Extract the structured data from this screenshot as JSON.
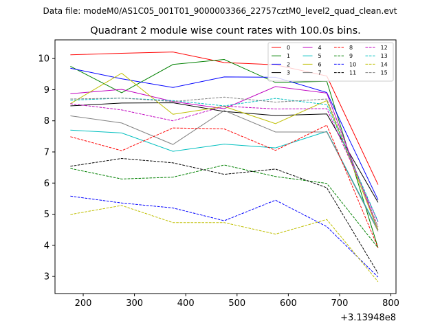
{
  "suptitle": "Data file: modeM0/AS1C05_001T01_9000003366_22757cztM0_level2_quad_clean.evt",
  "chart_data": {
    "type": "line",
    "title": "Quadrant 2 module wise count rates with 100.0s bins.",
    "xlabel": "",
    "ylabel": "",
    "x_offset_label": "+3.13948e8",
    "xlim": [
      145,
      810
    ],
    "ylim": [
      2.45,
      10.6
    ],
    "x_ticks": [
      200,
      300,
      400,
      500,
      600,
      700,
      800
    ],
    "y_ticks": [
      3,
      4,
      5,
      6,
      7,
      8,
      9,
      10
    ],
    "x": [
      175,
      275,
      375,
      475,
      575,
      675,
      775
    ],
    "legend_location": "upper right",
    "legend_columns": 4,
    "series": [
      {
        "name": "0",
        "color": "#ff0000",
        "dash": "solid",
        "values": [
          10.12,
          10.17,
          10.21,
          9.87,
          9.8,
          9.44,
          5.95
        ]
      },
      {
        "name": "1",
        "color": "#008000",
        "dash": "solid",
        "values": [
          9.75,
          8.9,
          9.81,
          9.97,
          9.23,
          9.27,
          3.92
        ]
      },
      {
        "name": "2",
        "color": "#0000ff",
        "dash": "solid",
        "values": [
          9.69,
          9.35,
          9.07,
          9.41,
          9.4,
          8.91,
          5.46
        ]
      },
      {
        "name": "3",
        "color": "#000000",
        "dash": "solid",
        "values": [
          8.48,
          8.57,
          8.58,
          8.3,
          8.17,
          8.22,
          5.38
        ]
      },
      {
        "name": "4",
        "color": "#bf00bf",
        "dash": "solid",
        "values": [
          8.87,
          9.01,
          8.62,
          8.39,
          9.1,
          8.89,
          4.5
        ]
      },
      {
        "name": "5",
        "color": "#00bfbf",
        "dash": "solid",
        "values": [
          7.7,
          7.61,
          7.02,
          7.25,
          7.13,
          7.66,
          4.5
        ]
      },
      {
        "name": "6",
        "color": "#bfbf00",
        "dash": "solid",
        "values": [
          8.55,
          9.53,
          8.21,
          8.46,
          7.91,
          8.65,
          4.48
        ]
      },
      {
        "name": "7",
        "color": "#808080",
        "dash": "solid",
        "values": [
          8.16,
          7.93,
          7.24,
          8.33,
          7.64,
          7.64,
          4.45
        ]
      },
      {
        "name": "8",
        "color": "#ff0000",
        "dash": "dashed",
        "values": [
          7.49,
          7.04,
          7.77,
          7.74,
          7.05,
          7.86,
          3.92
        ]
      },
      {
        "name": "9",
        "color": "#008000",
        "dash": "dashed",
        "values": [
          6.47,
          6.13,
          6.19,
          6.58,
          6.21,
          5.99,
          3.92
        ]
      },
      {
        "name": "10",
        "color": "#0000ff",
        "dash": "dashed",
        "values": [
          5.58,
          5.36,
          5.2,
          4.79,
          5.45,
          4.6,
          2.98
        ]
      },
      {
        "name": "11",
        "color": "#000000",
        "dash": "dashed",
        "values": [
          6.54,
          6.79,
          6.65,
          6.28,
          6.45,
          5.85,
          3.1
        ]
      },
      {
        "name": "12",
        "color": "#bf00bf",
        "dash": "dashed",
        "values": [
          8.55,
          8.35,
          8.0,
          8.47,
          8.38,
          8.39,
          4.75
        ]
      },
      {
        "name": "13",
        "color": "#00bfbf",
        "dash": "dashed",
        "values": [
          8.66,
          8.73,
          8.65,
          8.48,
          8.72,
          8.52,
          4.77
        ]
      },
      {
        "name": "14",
        "color": "#bfbf00",
        "dash": "dashed",
        "values": [
          4.99,
          5.28,
          4.73,
          4.73,
          4.36,
          4.83,
          2.83
        ]
      },
      {
        "name": "15",
        "color": "#808080",
        "dash": "dashed",
        "values": [
          8.7,
          8.73,
          8.62,
          8.76,
          8.6,
          8.7,
          4.6
        ]
      }
    ]
  }
}
